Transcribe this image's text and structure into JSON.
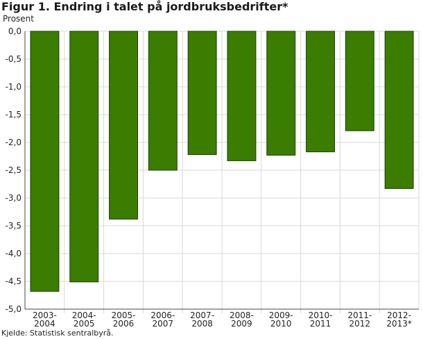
{
  "chart_data": {
    "type": "bar",
    "title": "Figur 1. Endring i talet på jordbruksbedrifter*",
    "ylabel": "Prosent",
    "xlabel": "",
    "categories": [
      [
        "2003-",
        "2004"
      ],
      [
        "2004-",
        "2005"
      ],
      [
        "2005-",
        "2006"
      ],
      [
        "2006-",
        "2007"
      ],
      [
        "2007-",
        "2008"
      ],
      [
        "2008-",
        "2009"
      ],
      [
        "2009-",
        "2010"
      ],
      [
        "2010-",
        "2011"
      ],
      [
        "2011-",
        "2012"
      ],
      [
        "2012-",
        "2013*"
      ]
    ],
    "values": [
      -4.68,
      -4.51,
      -3.38,
      -2.5,
      -2.22,
      -2.33,
      -2.23,
      -2.17,
      -1.79,
      -2.83
    ],
    "ylim": [
      -5.0,
      0.0
    ],
    "yticks": [
      "0,0",
      "-0,5",
      "-1,0",
      "-1,5",
      "-2,0",
      "-2,5",
      "-3,0",
      "-3,5",
      "-4,0",
      "-4,5",
      "-5,0"
    ],
    "grid": true,
    "bar_color": "#3a7d00",
    "bar_edge_color": "#1f3d00"
  },
  "source": "Kjelde: Statistisk sentralbyrå."
}
